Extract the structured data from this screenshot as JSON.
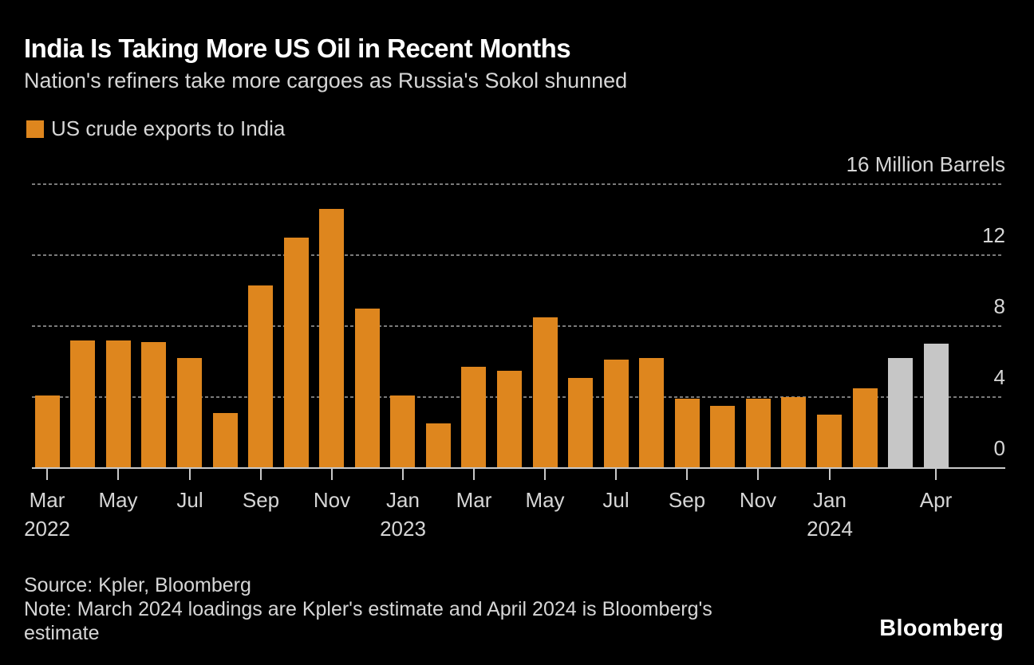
{
  "header": {
    "title": "India Is Taking More US Oil in Recent Months",
    "subtitle": "Nation's refiners take more cargoes as Russia's Sokol shunned"
  },
  "footer": {
    "source": "Source: Kpler, Bloomberg",
    "note_lines": [
      "Note: March 2024 loadings are Kpler's estimate and April 2024 is Bloomberg's",
      "estimate"
    ],
    "logo": "Bloomberg"
  },
  "colors": {
    "background": "#000000",
    "bar_orange": "#DE861E",
    "bar_estimate_gray": "#C6C6C6",
    "gridline": "#7A7A7A",
    "axis": "#C9C9C9",
    "text_primary": "#FFFFFF",
    "text_secondary": "#D6D6D6"
  },
  "chart_data": {
    "type": "bar",
    "title": "India Is Taking More US Oil in Recent Months",
    "subtitle": "Nation's refiners take more cargoes as Russia's Sokol shunned",
    "legend_label": "US crude exports to India",
    "ylabel": "Million Barrels",
    "ylim": [
      0,
      16
    ],
    "grid": "dotted horizontal",
    "legend_position": "top-left",
    "gridline_values": [
      4,
      8,
      12,
      16
    ],
    "y_ticks": [
      {
        "value": 16,
        "label": "16 Million Barrels"
      },
      {
        "value": 12,
        "label": "12"
      },
      {
        "value": 8,
        "label": "8"
      },
      {
        "value": 4,
        "label": "4"
      },
      {
        "value": 0,
        "label": "0"
      }
    ],
    "categories": [
      "Mar 2022",
      "Apr 2022",
      "May 2022",
      "Jun 2022",
      "Jul 2022",
      "Aug 2022",
      "Sep 2022",
      "Oct 2022",
      "Nov 2022",
      "Dec 2022",
      "Jan 2023",
      "Feb 2023",
      "Mar 2023",
      "Apr 2023",
      "May 2023",
      "Jun 2023",
      "Jul 2023",
      "Aug 2023",
      "Sep 2023",
      "Oct 2023",
      "Nov 2023",
      "Dec 2023",
      "Jan 2024",
      "Feb 2024",
      "Mar 2024",
      "Apr 2024"
    ],
    "values": [
      4.1,
      7.2,
      7.2,
      7.1,
      6.2,
      3.1,
      10.3,
      13.0,
      14.6,
      9.0,
      4.1,
      2.5,
      5.7,
      5.5,
      8.5,
      5.1,
      6.1,
      6.2,
      3.9,
      3.5,
      3.9,
      4.0,
      3.0,
      4.5,
      6.2,
      7.0
    ],
    "estimate_start_index": 24,
    "x_ticks": [
      {
        "index": 0,
        "lines": [
          "Mar",
          "2022"
        ]
      },
      {
        "index": 2,
        "lines": [
          "May"
        ]
      },
      {
        "index": 4,
        "lines": [
          "Jul"
        ]
      },
      {
        "index": 6,
        "lines": [
          "Sep"
        ]
      },
      {
        "index": 8,
        "lines": [
          "Nov"
        ]
      },
      {
        "index": 10,
        "lines": [
          "Jan",
          "2023"
        ]
      },
      {
        "index": 12,
        "lines": [
          "Mar"
        ]
      },
      {
        "index": 14,
        "lines": [
          "May"
        ]
      },
      {
        "index": 16,
        "lines": [
          "Jul"
        ]
      },
      {
        "index": 18,
        "lines": [
          "Sep"
        ]
      },
      {
        "index": 20,
        "lines": [
          "Nov"
        ]
      },
      {
        "index": 22,
        "lines": [
          "Jan",
          "2024"
        ]
      },
      {
        "index": 25,
        "lines": [
          "Apr"
        ]
      }
    ]
  }
}
